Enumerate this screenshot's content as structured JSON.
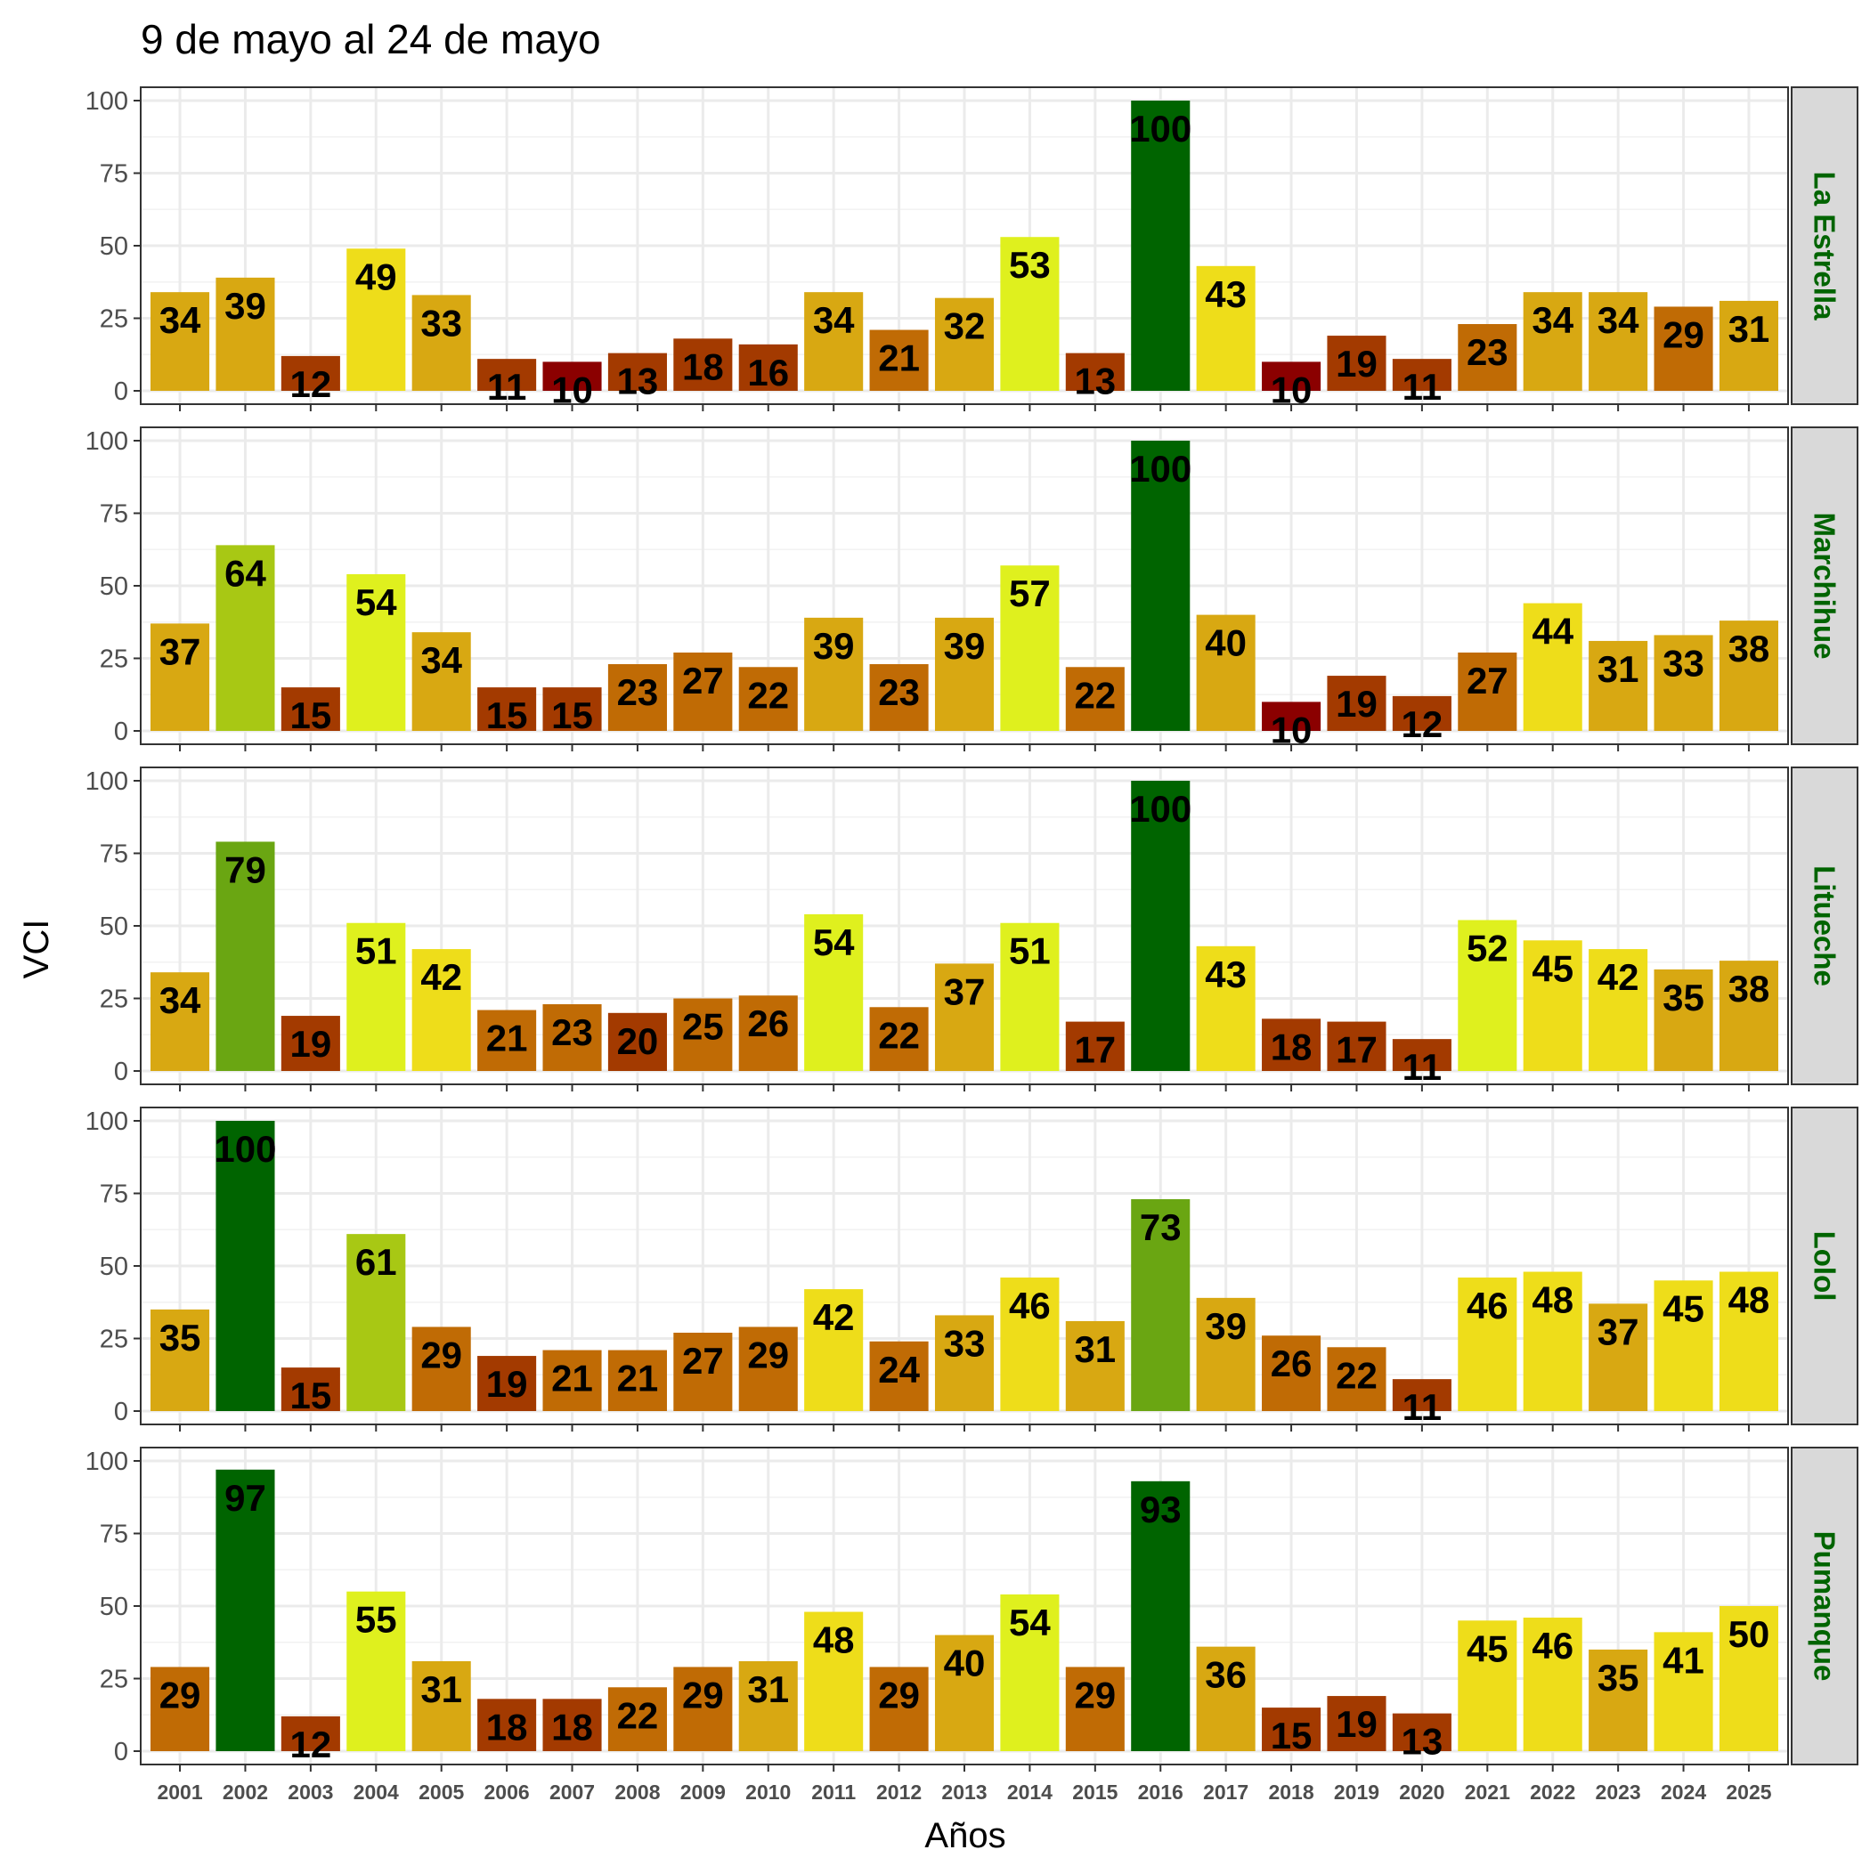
{
  "chart_data": {
    "type": "bar",
    "title": "9 de mayo al 24 de mayo",
    "xlabel": "Años",
    "ylabel": "VCI",
    "ylim": [
      0,
      100
    ],
    "yticks": [
      "0",
      "25",
      "50",
      "75",
      "100"
    ],
    "grid": true,
    "categories": [
      "2001",
      "2002",
      "2003",
      "2004",
      "2005",
      "2006",
      "2007",
      "2008",
      "2009",
      "2010",
      "2011",
      "2012",
      "2013",
      "2014",
      "2015",
      "2016",
      "2017",
      "2018",
      "2019",
      "2020",
      "2021",
      "2022",
      "2023",
      "2024",
      "2025"
    ],
    "color_scale": {
      "very_low": "#8b0000",
      "low": "#a33a00",
      "moderate_low": "#c06b05",
      "moderate": "#d8a812",
      "fair": "#eedd1a",
      "good": "#dff01e",
      "very_good": "#a8c814",
      "high": "#6aa612",
      "max": "#006400"
    },
    "series": [
      {
        "name": "La Estrella",
        "values": [
          34,
          39,
          12,
          49,
          33,
          11,
          10,
          13,
          18,
          16,
          34,
          21,
          32,
          53,
          13,
          100,
          43,
          10,
          19,
          11,
          23,
          34,
          34,
          29,
          31
        ]
      },
      {
        "name": "Marchihue",
        "values": [
          37,
          64,
          15,
          54,
          34,
          15,
          15,
          23,
          27,
          22,
          39,
          23,
          39,
          57,
          22,
          100,
          40,
          10,
          19,
          12,
          27,
          44,
          31,
          33,
          38
        ]
      },
      {
        "name": "Litueche",
        "values": [
          34,
          79,
          19,
          51,
          42,
          21,
          23,
          20,
          25,
          26,
          54,
          22,
          37,
          51,
          17,
          100,
          43,
          18,
          17,
          11,
          52,
          45,
          42,
          35,
          38
        ]
      },
      {
        "name": "Lolol",
        "values": [
          35,
          100,
          15,
          61,
          29,
          19,
          21,
          21,
          27,
          29,
          42,
          24,
          33,
          46,
          31,
          73,
          39,
          26,
          22,
          11,
          46,
          48,
          37,
          45,
          48
        ]
      },
      {
        "name": "Pumanque",
        "values": [
          29,
          97,
          12,
          55,
          31,
          18,
          18,
          22,
          29,
          31,
          48,
          29,
          40,
          54,
          29,
          93,
          36,
          15,
          19,
          13,
          45,
          46,
          35,
          41,
          50
        ]
      }
    ]
  }
}
